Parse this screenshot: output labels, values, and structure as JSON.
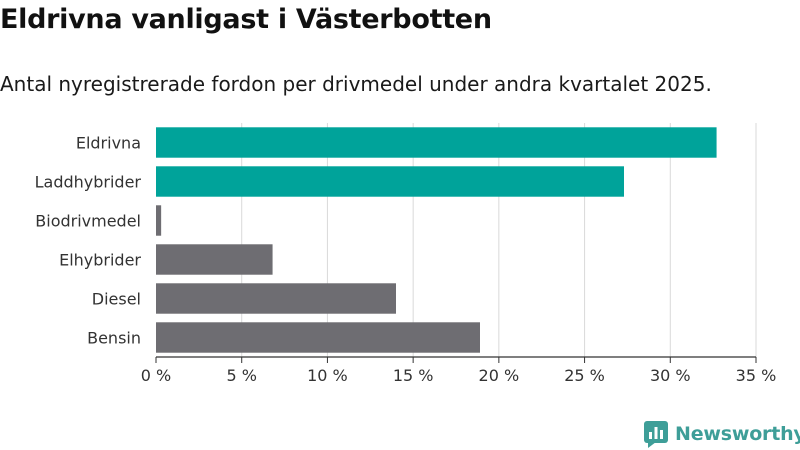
{
  "title": "Eldrivna vanligast i Västerbotten",
  "subtitle": "Antal nyregistrerade fordon per drivmedel under andra kvartalet 2025.",
  "brand": "Newsworthy",
  "colors": {
    "highlight": "#00a39a",
    "other": "#6e6d72",
    "grid": "#d9d9d9",
    "axis": "#333333"
  },
  "chart_data": {
    "type": "bar",
    "orientation": "horizontal",
    "categories": [
      "Eldrivna",
      "Laddhybrider",
      "Biodrivmedel",
      "Elhybrider",
      "Diesel",
      "Bensin"
    ],
    "values": [
      32.7,
      27.3,
      0.3,
      6.8,
      14.0,
      18.9
    ],
    "highlighted": [
      true,
      true,
      false,
      false,
      false,
      false
    ],
    "xlim": [
      0,
      35
    ],
    "xticks": [
      0,
      5,
      10,
      15,
      20,
      25,
      30,
      35
    ],
    "xtick_labels": [
      "0 %",
      "5 %",
      "10 %",
      "15 %",
      "20 %",
      "25 %",
      "30 %",
      "35 %"
    ],
    "grid": true
  }
}
